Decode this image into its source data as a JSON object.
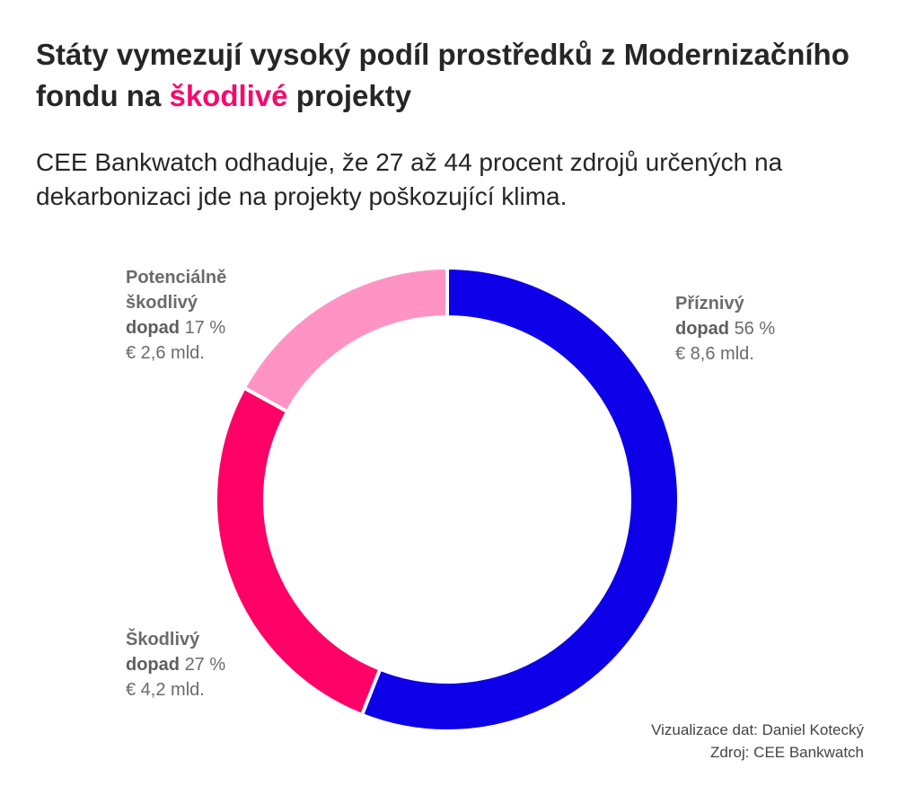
{
  "header": {
    "title_part1": "Státy vymezují vysoký podíl prostředků z Modernizačního fondu na ",
    "title_accent": "škodlivé",
    "title_part2": " projekty",
    "subtitle": "CEE Bankwatch odhaduje, že 27 až 44 procent zdrojů určených na dekarbonizaci jde na projekty poškozující klima."
  },
  "chart_data": {
    "type": "pie",
    "variant": "donut",
    "title": "Státy vymezují vysoký podíl prostředků z Modernizačního fondu na škodlivé projekty",
    "slices": [
      {
        "name": "Příznivý dopad",
        "name_line1": "Příznivý",
        "name_line2": "dopad",
        "percent": 56,
        "percent_label": "56 %",
        "amount_label": "€ 8,6 mld.",
        "amount": 8.6,
        "color": "#0d00e8"
      },
      {
        "name": "Škodlivý dopad",
        "name_line1": "Škodlivý",
        "name_line2": "dopad",
        "percent": 27,
        "percent_label": "27 %",
        "amount_label": "€ 4,2 mld.",
        "amount": 4.2,
        "color": "#ff0066"
      },
      {
        "name": "Potenciálně škodlivý dopad",
        "name_line1": "Potenciálně",
        "name_line2": "škodlivý",
        "name_line3": "dopad",
        "percent": 17,
        "percent_label": "17 %",
        "amount_label": "€ 2,6 mld.",
        "amount": 2.6,
        "color": "#ff94c4"
      }
    ]
  },
  "footer": {
    "credit": "Vizualizace dat: Daniel Kotecký",
    "source": "Zdroj: CEE Bankwatch"
  }
}
